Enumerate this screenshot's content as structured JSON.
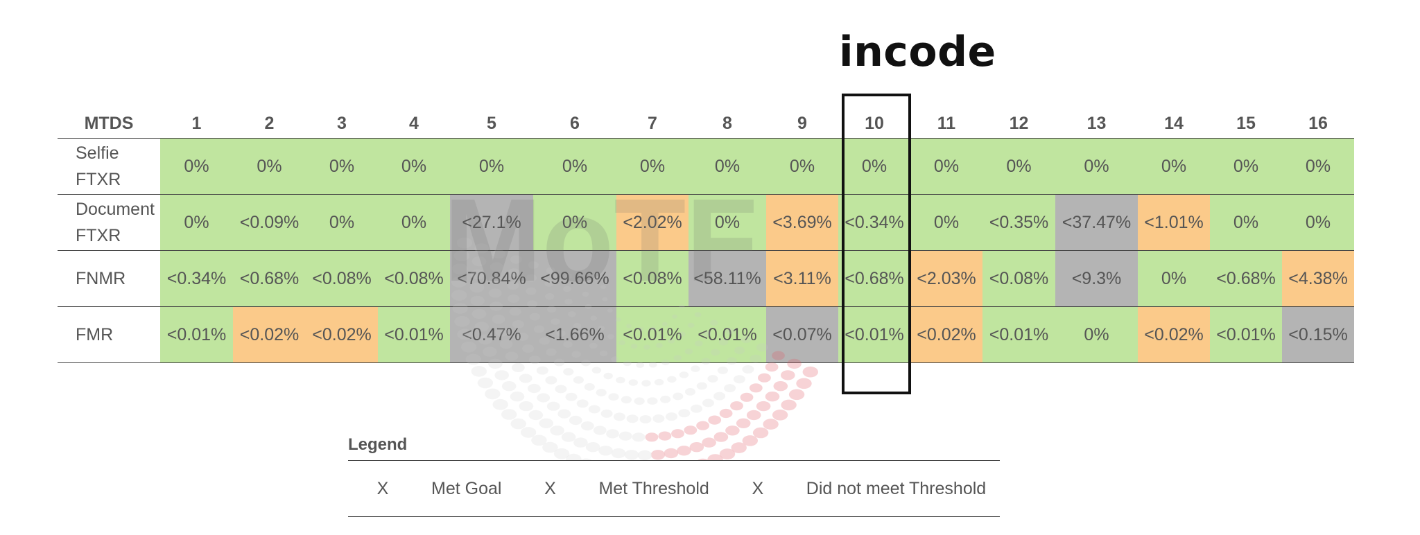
{
  "brand": "incode",
  "watermark_text": "MoTF",
  "colors": {
    "met_goal": "#c0e59f",
    "met_threshold": "#fbca8a",
    "not_met": "#b4b4b4",
    "highlight_border": "#111111"
  },
  "chart_data": {
    "type": "table",
    "corner_header": "MTDS",
    "columns": [
      "1",
      "2",
      "3",
      "4",
      "5",
      "6",
      "7",
      "8",
      "9",
      "10",
      "11",
      "12",
      "13",
      "14",
      "15",
      "16"
    ],
    "highlighted_column": "10",
    "rows": [
      {
        "label_lines": [
          "Selfie",
          "FTXR"
        ],
        "cells": [
          {
            "v": "0%",
            "s": "met-goal"
          },
          {
            "v": "0%",
            "s": "met-goal"
          },
          {
            "v": "0%",
            "s": "met-goal"
          },
          {
            "v": "0%",
            "s": "met-goal"
          },
          {
            "v": "0%",
            "s": "met-goal"
          },
          {
            "v": "0%",
            "s": "met-goal"
          },
          {
            "v": "0%",
            "s": "met-goal"
          },
          {
            "v": "0%",
            "s": "met-goal"
          },
          {
            "v": "0%",
            "s": "met-goal"
          },
          {
            "v": "0%",
            "s": "met-goal"
          },
          {
            "v": "0%",
            "s": "met-goal"
          },
          {
            "v": "0%",
            "s": "met-goal"
          },
          {
            "v": "0%",
            "s": "met-goal"
          },
          {
            "v": "0%",
            "s": "met-goal"
          },
          {
            "v": "0%",
            "s": "met-goal"
          },
          {
            "v": "0%",
            "s": "met-goal"
          }
        ]
      },
      {
        "label_lines": [
          "Document",
          "FTXR"
        ],
        "cells": [
          {
            "v": "0%",
            "s": "met-goal"
          },
          {
            "v": "<0.09%",
            "s": "met-goal"
          },
          {
            "v": "0%",
            "s": "met-goal"
          },
          {
            "v": "0%",
            "s": "met-goal"
          },
          {
            "v": "<27.1%",
            "s": "not-met"
          },
          {
            "v": "0%",
            "s": "met-goal"
          },
          {
            "v": "<2.02%",
            "s": "met-threshold"
          },
          {
            "v": "0%",
            "s": "met-goal"
          },
          {
            "v": "<3.69%",
            "s": "met-threshold"
          },
          {
            "v": "<0.34%",
            "s": "met-goal"
          },
          {
            "v": "0%",
            "s": "met-goal"
          },
          {
            "v": "<0.35%",
            "s": "met-goal"
          },
          {
            "v": "<37.47%",
            "s": "not-met"
          },
          {
            "v": "<1.01%",
            "s": "met-threshold"
          },
          {
            "v": "0%",
            "s": "met-goal"
          },
          {
            "v": "0%",
            "s": "met-goal"
          }
        ]
      },
      {
        "label_lines": [
          "FNMR"
        ],
        "cells": [
          {
            "v": "<0.34%",
            "s": "met-goal"
          },
          {
            "v": "<0.68%",
            "s": "met-goal"
          },
          {
            "v": "<0.08%",
            "s": "met-goal"
          },
          {
            "v": "<0.08%",
            "s": "met-goal"
          },
          {
            "v": "<70.84%",
            "s": "not-met"
          },
          {
            "v": "<99.66%",
            "s": "not-met"
          },
          {
            "v": "<0.08%",
            "s": "met-goal"
          },
          {
            "v": "<58.11%",
            "s": "not-met"
          },
          {
            "v": "<3.11%",
            "s": "met-threshold"
          },
          {
            "v": "<0.68%",
            "s": "met-goal"
          },
          {
            "v": "<2.03%",
            "s": "met-threshold"
          },
          {
            "v": "<0.08%",
            "s": "met-goal"
          },
          {
            "v": "<9.3%",
            "s": "not-met"
          },
          {
            "v": "0%",
            "s": "met-goal"
          },
          {
            "v": "<0.68%",
            "s": "met-goal"
          },
          {
            "v": "<4.38%",
            "s": "met-threshold"
          }
        ]
      },
      {
        "label_lines": [
          "FMR"
        ],
        "cells": [
          {
            "v": "<0.01%",
            "s": "met-goal"
          },
          {
            "v": "<0.02%",
            "s": "met-threshold"
          },
          {
            "v": "<0.02%",
            "s": "met-threshold"
          },
          {
            "v": "<0.01%",
            "s": "met-goal"
          },
          {
            "v": "<0.47%",
            "s": "not-met"
          },
          {
            "v": "<1.66%",
            "s": "not-met"
          },
          {
            "v": "<0.01%",
            "s": "met-goal"
          },
          {
            "v": "<0.01%",
            "s": "met-goal"
          },
          {
            "v": "<0.07%",
            "s": "not-met"
          },
          {
            "v": "<0.01%",
            "s": "met-goal"
          },
          {
            "v": "<0.02%",
            "s": "met-threshold"
          },
          {
            "v": "<0.01%",
            "s": "met-goal"
          },
          {
            "v": "0%",
            "s": "met-goal"
          },
          {
            "v": "<0.02%",
            "s": "met-threshold"
          },
          {
            "v": "<0.01%",
            "s": "met-goal"
          },
          {
            "v": "<0.15%",
            "s": "not-met"
          }
        ]
      }
    ]
  },
  "legend": {
    "title": "Legend",
    "items": [
      {
        "mark": "X",
        "label": "Met Goal",
        "s": "met-goal"
      },
      {
        "mark": "X",
        "label": "Met Threshold",
        "s": "met-threshold"
      },
      {
        "mark": "X",
        "label": "Did not meet Threshold",
        "s": "not-met"
      }
    ]
  }
}
